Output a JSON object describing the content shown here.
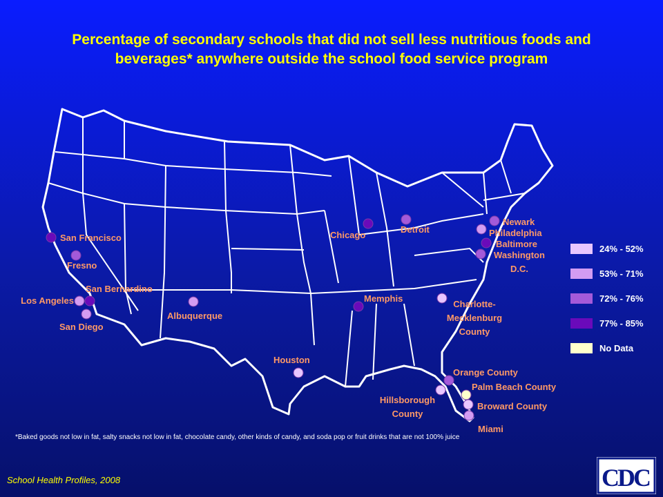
{
  "title": {
    "line1": "Percentage of secondary schools that did not sell less nutritious foods and",
    "line2": "beverages* anywhere outside the school food service program"
  },
  "colors": {
    "24-52": "#e8c6ff",
    "53-71": "#d39cf2",
    "72-76": "#a45ad9",
    "77-85": "#6a0aba",
    "no_data": "#ffffcc"
  },
  "legend": [
    {
      "label": "24% - 52%",
      "category": "24-52"
    },
    {
      "label": "53% - 71%",
      "category": "53-71"
    },
    {
      "label": "72% - 76%",
      "category": "72-76"
    },
    {
      "label": "77% - 85%",
      "category": "77-85"
    },
    {
      "label": "No Data",
      "category": "no_data"
    }
  ],
  "cities": [
    {
      "name": "San Francisco",
      "category": "77-85"
    },
    {
      "name": "Fresno",
      "category": "72-76"
    },
    {
      "name": "Los Angeles",
      "category": "53-71"
    },
    {
      "name": "San Bernardino",
      "category": "77-85"
    },
    {
      "name": "San Diego",
      "category": "53-71"
    },
    {
      "name": "Albuquerque",
      "category": "53-71"
    },
    {
      "name": "Houston",
      "category": "24-52"
    },
    {
      "name": "Chicago",
      "category": "77-85"
    },
    {
      "name": "Detroit",
      "category": "72-76"
    },
    {
      "name": "Memphis",
      "category": "77-85"
    },
    {
      "name": "Charlotte-Mecklenburg County",
      "lines": [
        "Charlotte-",
        "Mecklenburg",
        "County"
      ],
      "category": "24-52"
    },
    {
      "name": "Newark",
      "category": "72-76"
    },
    {
      "name": "Philadelphia",
      "category": "53-71"
    },
    {
      "name": "Baltimore",
      "category": "77-85"
    },
    {
      "name": "Washington D.C.",
      "lines": [
        "Washington",
        "D.C."
      ],
      "category": "72-76"
    },
    {
      "name": "Orange County",
      "category": "72-76"
    },
    {
      "name": "Palm Beach County",
      "category": "no_data"
    },
    {
      "name": "Hillsborough County",
      "lines": [
        "Hillsborough",
        "County"
      ],
      "category": "24-52"
    },
    {
      "name": "Broward County",
      "category": "24-52"
    },
    {
      "name": "Miami",
      "category": "53-71"
    }
  ],
  "footnote": "*Baked goods not low in fat, salty snacks not low in fat, chocolate candy, other kinds of candy, and soda pop or fruit drinks that are not 100% juice",
  "source": "School Health Profiles, 2008",
  "logo": {
    "text": "CDC"
  }
}
